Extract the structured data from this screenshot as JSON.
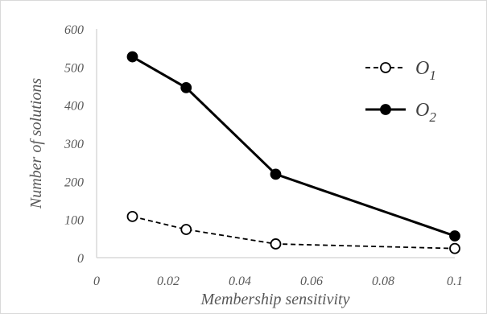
{
  "chart_data": {
    "type": "line",
    "xlabel": "Membership sensitivity",
    "ylabel": "Number of solutions",
    "xlim": [
      0,
      0.1
    ],
    "ylim": [
      0,
      600
    ],
    "xticks": [
      0,
      0.02,
      0.04,
      0.06,
      0.08,
      0.1
    ],
    "xtick_labels": [
      "0",
      "0.02",
      "0.04",
      "0.06",
      "0.08",
      "0.1"
    ],
    "yticks": [
      0,
      100,
      200,
      300,
      400,
      500,
      600
    ],
    "ytick_labels": [
      "0",
      "100",
      "200",
      "300",
      "400",
      "500",
      "600"
    ],
    "grid": false,
    "legend_position": "top-right",
    "series": [
      {
        "name": "O",
        "name_subscript": "1",
        "style": "dashed",
        "marker": "open-circle",
        "color": "#000000",
        "x": [
          0.01,
          0.025,
          0.05,
          0.1
        ],
        "y": [
          108,
          74,
          36,
          24
        ]
      },
      {
        "name": "O",
        "name_subscript": "2",
        "style": "solid",
        "marker": "filled-circle",
        "color": "#000000",
        "x": [
          0.01,
          0.025,
          0.05,
          0.1
        ],
        "y": [
          527,
          446,
          219,
          57
        ]
      }
    ]
  }
}
